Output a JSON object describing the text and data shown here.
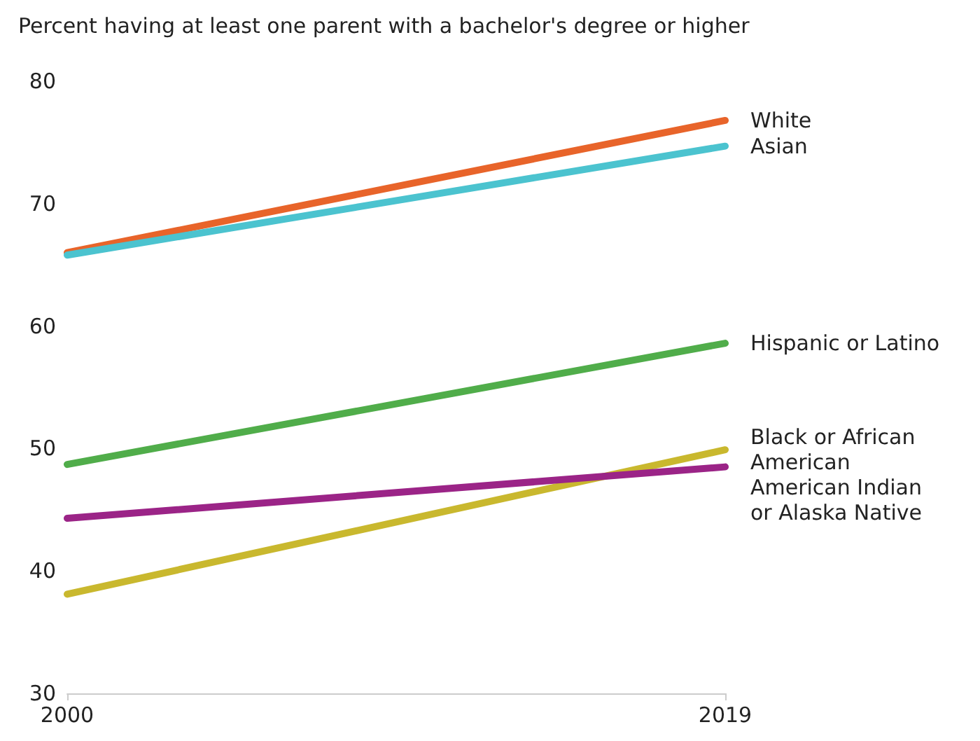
{
  "chart_data": {
    "type": "line",
    "title": "Percent having at least one parent with a bachelor's degree or higher",
    "categories": [
      "2000",
      "2019"
    ],
    "series": [
      {
        "name": "White",
        "color": "#e8642a",
        "values": [
          66.0,
          76.8
        ]
      },
      {
        "name": "Asian",
        "color": "#4bc3cf",
        "values": [
          65.8,
          74.7
        ]
      },
      {
        "name": "Hispanic or Latino",
        "color": "#50ad4a",
        "values": [
          48.7,
          58.6
        ]
      },
      {
        "name": "Black or African American",
        "color": "#c9b82e",
        "values": [
          38.1,
          49.9
        ]
      },
      {
        "name": "American Indian or Alaska Native",
        "color": "#9b2487",
        "values": [
          44.3,
          48.5
        ]
      }
    ],
    "ylim": [
      30,
      80
    ],
    "yticks": [
      30,
      40,
      50,
      60,
      70,
      80
    ],
    "grid": false,
    "legend": false,
    "marker": "none",
    "line_style": "solid"
  }
}
